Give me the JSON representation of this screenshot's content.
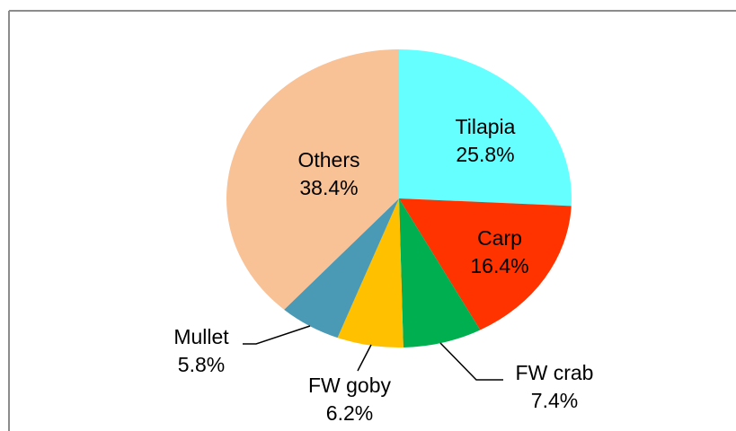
{
  "chart_data": {
    "type": "pie",
    "categories": [
      "Tilapia",
      "Carp",
      "FW crab",
      "FW goby",
      "Mullet",
      "Others"
    ],
    "values": [
      25.8,
      16.4,
      7.4,
      6.2,
      5.8,
      38.4
    ],
    "value_labels": [
      "25.8%",
      "16.4%",
      "7.4%",
      "6.2%",
      "5.8%",
      "38.4%"
    ],
    "colors": [
      "#66ffff",
      "#ff3300",
      "#00b050",
      "#ffc000",
      "#4a9ab5",
      "#f9c196"
    ]
  }
}
